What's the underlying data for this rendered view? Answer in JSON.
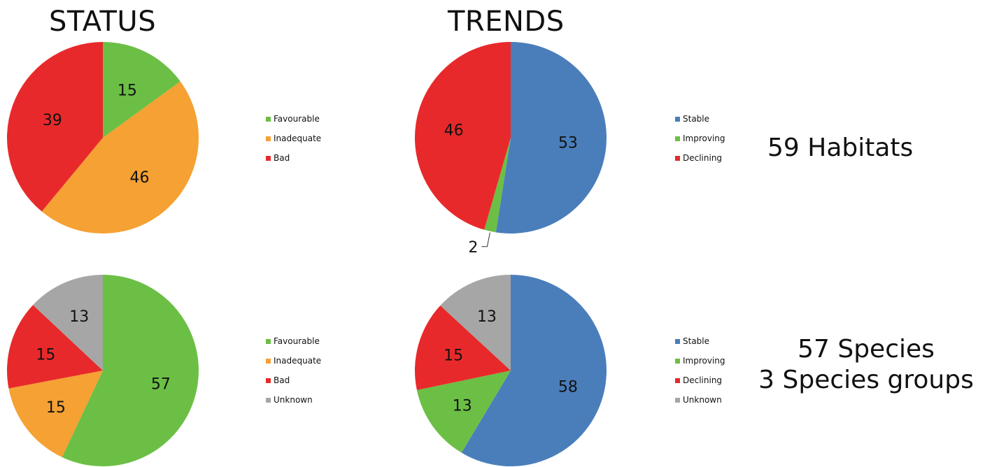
{
  "headings": {
    "status": "STATUS",
    "trends": "TRENDS"
  },
  "colors": {
    "green": "#6cbf45",
    "orange": "#f5a133",
    "red": "#e8292b",
    "blue": "#4a7ebb",
    "gray": "#a6a6a6"
  },
  "chart_data": [
    {
      "type": "pie",
      "title": "STATUS",
      "group": "59 Habitats",
      "slices": [
        {
          "label": "Favourable",
          "value": 15,
          "color": "#6cbf45"
        },
        {
          "label": "Inadequate",
          "value": 46,
          "color": "#f5a133"
        },
        {
          "label": "Bad",
          "value": 39,
          "color": "#e8292b"
        }
      ],
      "legend": [
        "Favourable",
        "Inadequate",
        "Bad"
      ]
    },
    {
      "type": "pie",
      "title": "TRENDS",
      "group": "59 Habitats",
      "slices": [
        {
          "label": "Stable",
          "value": 53,
          "color": "#4a7ebb"
        },
        {
          "label": "Improving",
          "value": 2,
          "color": "#6cbf45"
        },
        {
          "label": "Declining",
          "value": 46,
          "color": "#e8292b"
        }
      ],
      "legend": [
        "Stable",
        "Improving",
        "Declining"
      ]
    },
    {
      "type": "pie",
      "title": "STATUS",
      "group": "57 Species 3 Species groups",
      "slices": [
        {
          "label": "Favourable",
          "value": 57,
          "color": "#6cbf45"
        },
        {
          "label": "Inadequate",
          "value": 15,
          "color": "#f5a133"
        },
        {
          "label": "Bad",
          "value": 15,
          "color": "#e8292b"
        },
        {
          "label": "Unknown",
          "value": 13,
          "color": "#a6a6a6"
        }
      ],
      "legend": [
        "Favourable",
        "Inadequate",
        "Bad",
        "Unknown"
      ]
    },
    {
      "type": "pie",
      "title": "TRENDS",
      "group": "57 Species 3 Species groups",
      "slices": [
        {
          "label": "Stable",
          "value": 58,
          "color": "#4a7ebb"
        },
        {
          "label": "Improving",
          "value": 13,
          "color": "#6cbf45"
        },
        {
          "label": "Declining",
          "value": 15,
          "color": "#e8292b"
        },
        {
          "label": "Unknown",
          "value": 13,
          "color": "#a6a6a6"
        }
      ],
      "legend": [
        "Stable",
        "Improving",
        "Declining",
        "Unknown"
      ]
    }
  ],
  "groups": {
    "habitats": "59 Habitats",
    "species_line1": "57 Species",
    "species_line2": "3 Species groups"
  }
}
